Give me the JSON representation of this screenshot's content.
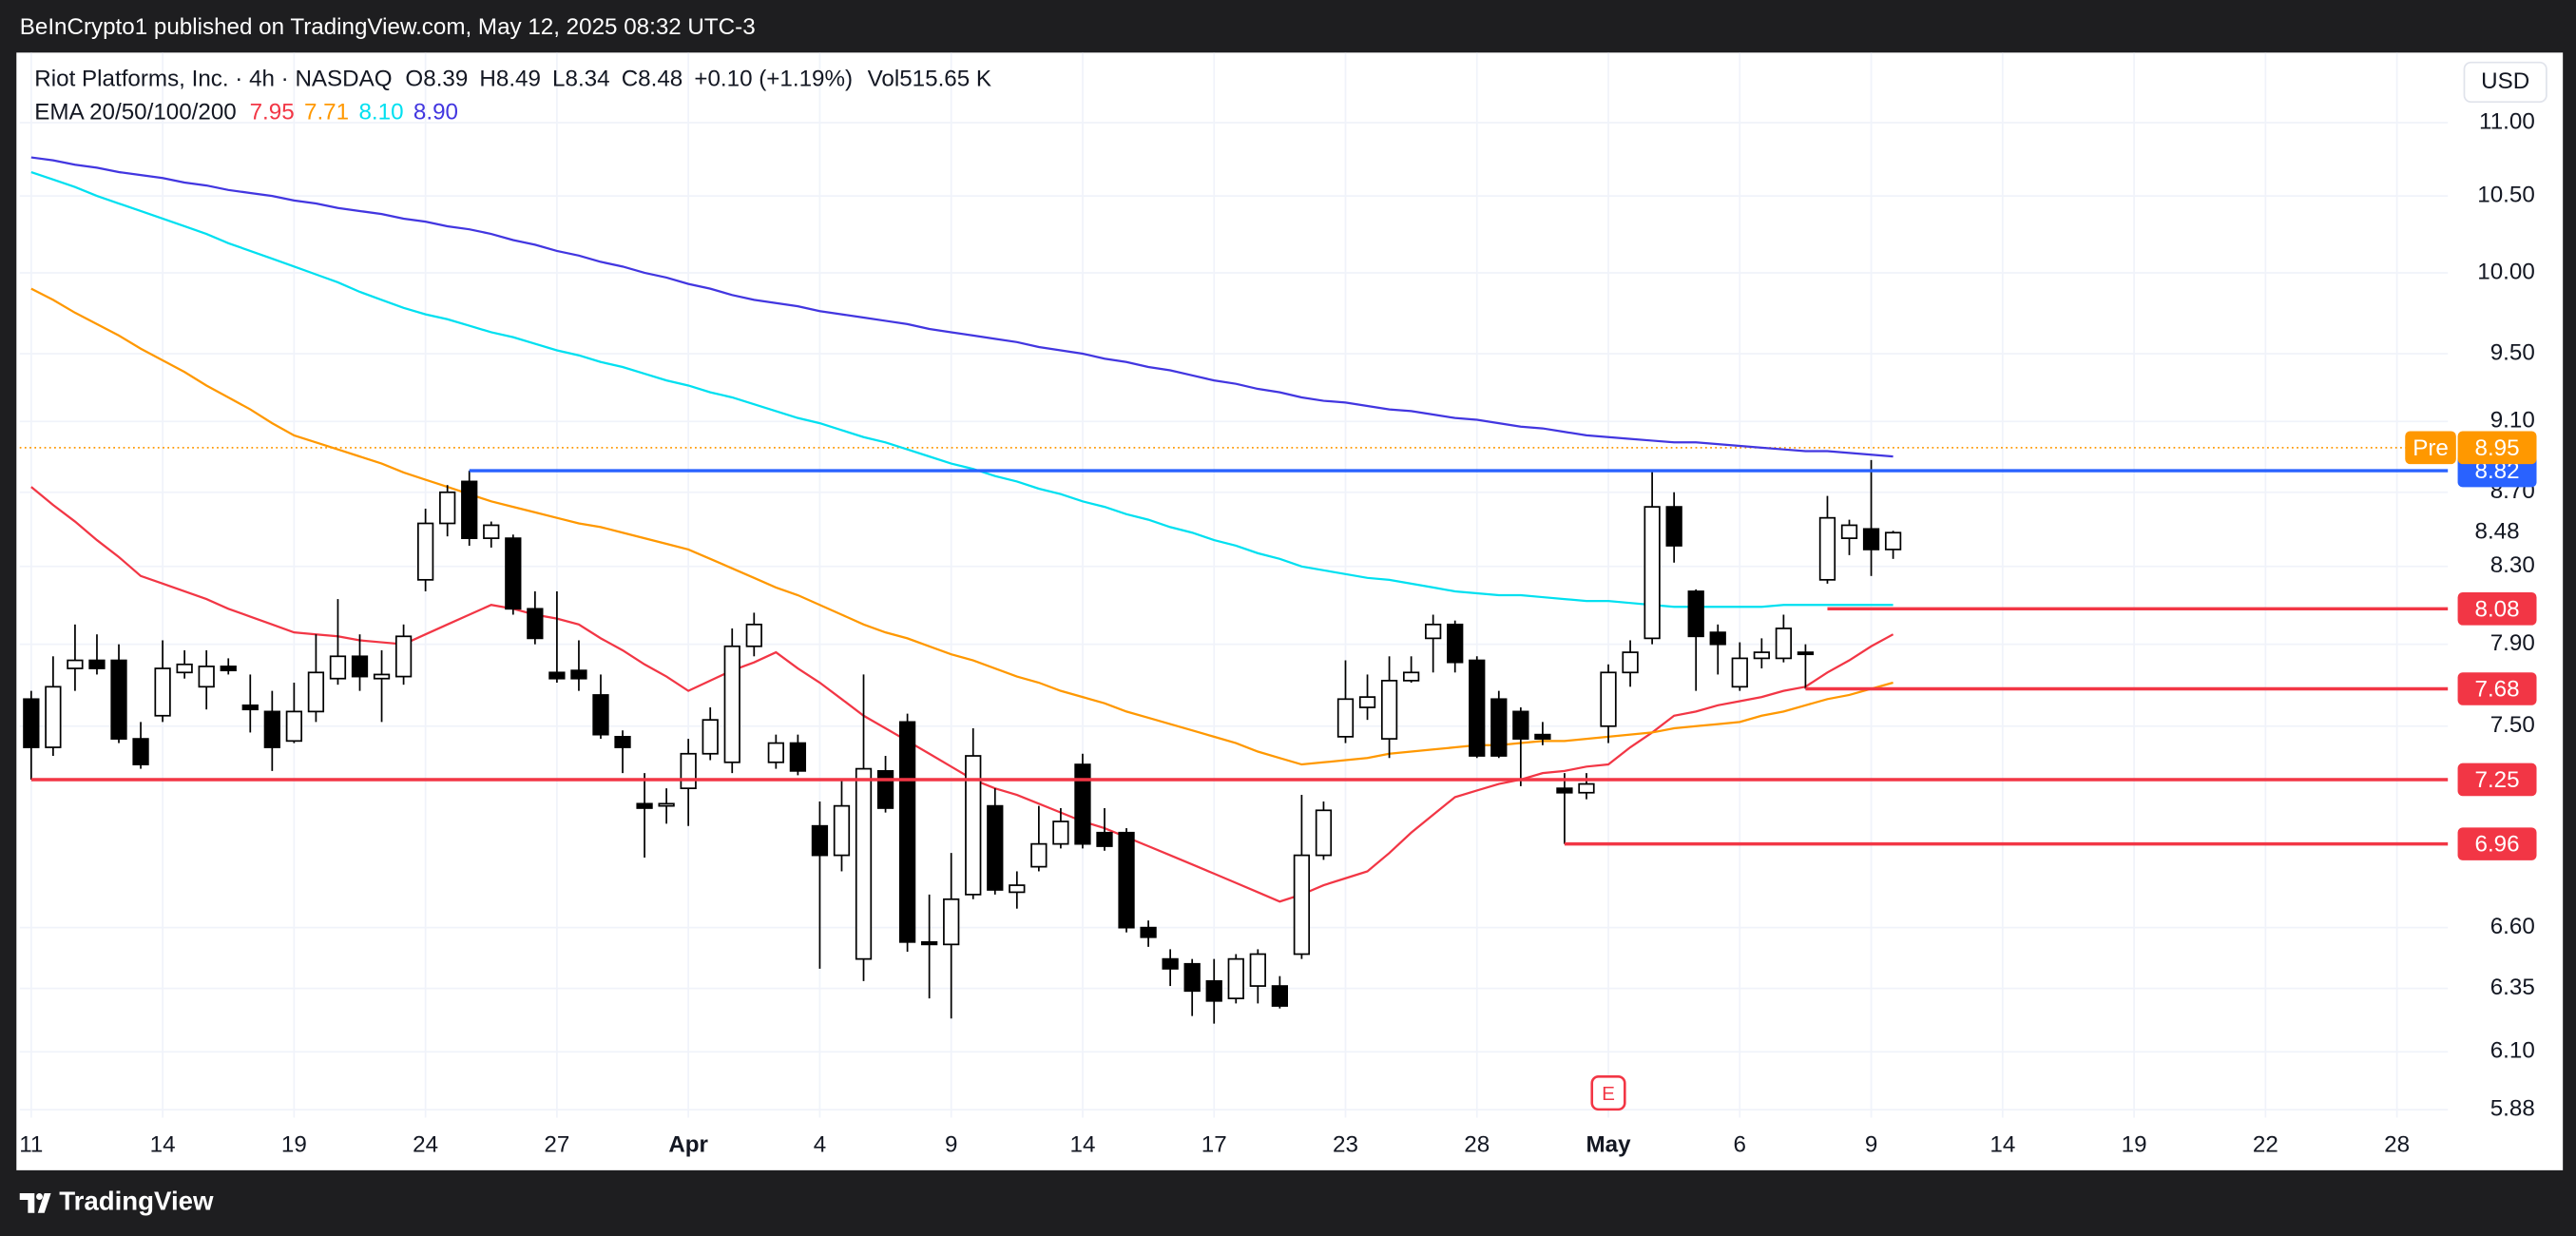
{
  "header": {
    "published": "BeInCrypto1 published on TradingView.com, May 12, 2025 08:32 UTC-3"
  },
  "footer": {
    "brand": "TradingView"
  },
  "chart_data": {
    "type": "candlestick",
    "title": "Riot Platforms, Inc. · 4h · NASDAQ",
    "ohlc_letters": [
      "O",
      "H",
      "L",
      "C"
    ],
    "change": "+0.10 (+1.19%)",
    "volume_label": "Vol",
    "volume": "515.65 K",
    "indicator": "EMA 20/50/100/200",
    "currency": "USD",
    "event_marker": "E",
    "categories": [
      "11",
      null,
      null,
      null,
      null,
      null,
      "14",
      null,
      null,
      null,
      null,
      null,
      "19",
      null,
      null,
      null,
      null,
      null,
      "24",
      null,
      null,
      null,
      null,
      null,
      "27",
      null,
      null,
      null,
      null,
      null,
      "Apr",
      null,
      null,
      null,
      null,
      null,
      "4",
      null,
      null,
      null,
      null,
      null,
      "9",
      null,
      null,
      null,
      null,
      null,
      "14",
      null,
      null,
      null,
      null,
      null,
      "17",
      null,
      null,
      null,
      null,
      null,
      "23",
      null,
      null,
      null,
      null,
      null,
      "28",
      null,
      null,
      null,
      null,
      null,
      "May",
      null,
      null,
      null,
      null,
      null,
      "6",
      null,
      null,
      null,
      null,
      null,
      "9",
      null,
      null,
      null,
      null,
      null,
      "14",
      null,
      null,
      null,
      null,
      null,
      "19",
      null,
      null,
      null,
      null,
      null,
      "22",
      null,
      null,
      null,
      null,
      null,
      "28",
      null
    ],
    "open": [
      7.63,
      7.4,
      7.78,
      7.82,
      7.82,
      7.44,
      7.55,
      7.76,
      7.69,
      7.79,
      7.6,
      7.57,
      7.43,
      7.57,
      7.73,
      7.84,
      7.73,
      7.74,
      8.23,
      8.53,
      8.76,
      8.45,
      8.45,
      8.08,
      7.76,
      7.77,
      7.65,
      7.45,
      7.14,
      7.13,
      7.21,
      7.37,
      7.33,
      7.89,
      7.33,
      7.42,
      7.04,
      6.91,
      6.47,
      7.29,
      7.52,
      6.54,
      6.53,
      6.74,
      7.13,
      6.75,
      6.86,
      6.96,
      7.32,
      7.01,
      7.01,
      6.6,
      6.47,
      6.45,
      6.38,
      6.31,
      6.36,
      6.36,
      6.49,
      6.91,
      7.45,
      7.59,
      7.44,
      7.72,
      7.93,
      8.0,
      7.82,
      7.63,
      7.57,
      7.46,
      7.21,
      7.19,
      7.5,
      7.76,
      7.93,
      8.62,
      8.17,
      7.96,
      7.69,
      7.83,
      7.83,
      7.86,
      8.23,
      8.45,
      8.5,
      8.39,
      null,
      null,
      null,
      null,
      null,
      null,
      null,
      null,
      null,
      null,
      null,
      null,
      null,
      null,
      null,
      null,
      null,
      null,
      null,
      null,
      null,
      null,
      null,
      null
    ],
    "high": [
      7.67,
      7.84,
      8.0,
      7.95,
      7.9,
      7.52,
      7.92,
      7.87,
      7.87,
      7.83,
      7.75,
      7.67,
      7.71,
      7.95,
      8.13,
      7.95,
      7.87,
      8.0,
      8.61,
      8.74,
      8.82,
      8.54,
      8.47,
      8.17,
      8.17,
      7.92,
      7.75,
      7.48,
      7.28,
      7.21,
      7.44,
      7.59,
      7.98,
      8.06,
      7.46,
      7.46,
      7.15,
      7.25,
      7.75,
      7.36,
      7.56,
      6.74,
      6.92,
      7.49,
      7.21,
      6.84,
      7.13,
      7.12,
      7.37,
      7.12,
      7.03,
      6.63,
      6.51,
      6.47,
      6.47,
      6.49,
      6.51,
      6.4,
      7.18,
      7.15,
      7.82,
      7.75,
      7.84,
      7.84,
      8.05,
      8.02,
      7.84,
      7.67,
      7.59,
      7.52,
      7.28,
      7.28,
      7.8,
      7.92,
      8.82,
      8.7,
      8.18,
      8.0,
      7.91,
      7.93,
      8.05,
      7.9,
      8.68,
      8.55,
      8.88,
      8.49,
      null,
      null,
      null,
      null,
      null,
      null,
      null,
      null,
      null,
      null,
      null,
      null,
      null,
      null,
      null,
      null,
      null,
      null,
      null,
      null,
      null,
      null,
      null,
      null
    ],
    "low": [
      7.25,
      7.36,
      7.67,
      7.75,
      7.42,
      7.3,
      7.52,
      7.73,
      7.58,
      7.75,
      7.47,
      7.29,
      7.42,
      7.52,
      7.7,
      7.67,
      7.52,
      7.7,
      8.17,
      8.46,
      8.41,
      8.4,
      8.05,
      7.9,
      7.71,
      7.67,
      7.44,
      7.28,
      6.9,
      7.05,
      7.04,
      7.34,
      7.28,
      7.84,
      7.3,
      7.27,
      6.43,
      6.84,
      6.38,
      7.1,
      6.5,
      6.31,
      6.23,
      6.72,
      6.74,
      6.68,
      6.84,
      6.94,
      6.94,
      6.93,
      6.58,
      6.52,
      6.36,
      6.24,
      6.21,
      6.29,
      6.29,
      6.27,
      6.47,
      6.89,
      7.42,
      7.53,
      7.35,
      7.71,
      7.76,
      7.76,
      7.35,
      7.35,
      7.22,
      7.41,
      6.96,
      7.16,
      7.42,
      7.69,
      7.9,
      8.32,
      7.67,
      7.75,
      7.67,
      7.78,
      7.81,
      7.68,
      8.21,
      8.36,
      8.25,
      8.34,
      null,
      null,
      null,
      null,
      null,
      null,
      null,
      null,
      null,
      null,
      null,
      null,
      null,
      null,
      null,
      null,
      null,
      null,
      null,
      null,
      null,
      null,
      null,
      null
    ],
    "close": [
      7.4,
      7.69,
      7.82,
      7.78,
      7.44,
      7.32,
      7.78,
      7.8,
      7.79,
      7.77,
      7.58,
      7.4,
      7.57,
      7.76,
      7.84,
      7.74,
      7.75,
      7.94,
      8.53,
      8.7,
      8.45,
      8.52,
      8.08,
      7.93,
      7.73,
      7.73,
      7.46,
      7.4,
      7.12,
      7.14,
      7.37,
      7.53,
      7.89,
      8.0,
      7.42,
      7.29,
      6.91,
      7.13,
      7.3,
      7.12,
      6.54,
      6.53,
      6.72,
      7.36,
      6.76,
      6.78,
      6.96,
      7.06,
      6.96,
      6.95,
      6.6,
      6.56,
      6.43,
      6.34,
      6.3,
      6.47,
      6.49,
      6.28,
      6.91,
      7.11,
      7.63,
      7.64,
      7.72,
      7.76,
      8.0,
      7.81,
      7.36,
      7.36,
      7.44,
      7.44,
      7.19,
      7.23,
      7.76,
      7.86,
      8.62,
      8.41,
      7.94,
      7.9,
      7.83,
      7.86,
      7.98,
      7.85,
      8.56,
      8.52,
      8.39,
      8.48,
      null,
      null,
      null,
      null,
      null,
      null,
      null,
      null,
      null,
      null,
      null,
      null,
      null,
      null,
      null,
      null,
      null,
      null,
      null,
      null,
      null,
      null,
      null,
      null
    ],
    "up_color": "#ffffff",
    "down_color": "#000000",
    "series": [
      {
        "color": "#f23645",
        "values": [
          8.73,
          8.63,
          8.54,
          8.44,
          8.35,
          8.25,
          8.21,
          8.17,
          8.13,
          8.08,
          8.04,
          8.0,
          7.96,
          7.95,
          7.94,
          7.92,
          7.91,
          7.9,
          7.95,
          8.0,
          8.05,
          8.1,
          8.08,
          8.05,
          8.03,
          8.0,
          7.93,
          7.87,
          7.8,
          7.74,
          7.67,
          7.72,
          7.77,
          7.81,
          7.86,
          7.78,
          7.71,
          7.63,
          7.55,
          7.49,
          7.43,
          7.37,
          7.31,
          7.25,
          7.21,
          7.18,
          7.14,
          7.1,
          7.06,
          7.03,
          6.99,
          6.95,
          6.91,
          6.87,
          6.83,
          6.79,
          6.75,
          6.71,
          6.74,
          6.78,
          6.81,
          6.84,
          6.92,
          7.01,
          7.09,
          7.17,
          7.2,
          7.23,
          7.25,
          7.28,
          7.29,
          7.31,
          7.32,
          7.4,
          7.47,
          7.55,
          7.57,
          7.6,
          7.62,
          7.64,
          7.67,
          7.69,
          7.76,
          7.82,
          7.89,
          7.95,
          null,
          null,
          null,
          null,
          null,
          null,
          null,
          null,
          null,
          null,
          null,
          null,
          null,
          null,
          null,
          null,
          null,
          null,
          null,
          null,
          null,
          null,
          null,
          null
        ]
      },
      {
        "color": "#ff9800",
        "values": [
          9.9,
          9.83,
          9.75,
          9.68,
          9.61,
          9.53,
          9.46,
          9.39,
          9.31,
          9.24,
          9.17,
          9.09,
          9.02,
          8.98,
          8.94,
          8.9,
          8.86,
          8.81,
          8.77,
          8.73,
          8.69,
          8.65,
          8.62,
          8.59,
          8.56,
          8.53,
          8.51,
          8.48,
          8.45,
          8.42,
          8.39,
          8.34,
          8.29,
          8.24,
          8.19,
          8.15,
          8.1,
          8.05,
          8.0,
          7.96,
          7.93,
          7.89,
          7.85,
          7.82,
          7.78,
          7.74,
          7.71,
          7.67,
          7.64,
          7.61,
          7.57,
          7.54,
          7.51,
          7.48,
          7.45,
          7.42,
          7.38,
          7.35,
          7.32,
          7.33,
          7.34,
          7.35,
          7.37,
          7.38,
          7.39,
          7.4,
          7.41,
          7.41,
          7.42,
          7.43,
          7.43,
          7.44,
          7.45,
          7.46,
          7.47,
          7.49,
          7.5,
          7.51,
          7.52,
          7.55,
          7.57,
          7.6,
          7.63,
          7.65,
          7.68,
          7.71,
          null,
          null,
          null,
          null,
          null,
          null,
          null,
          null,
          null,
          null,
          null,
          null,
          null,
          null,
          null,
          null,
          null,
          null,
          null,
          null,
          null,
          null,
          null,
          null
        ]
      },
      {
        "color": "#00e0f0",
        "values": [
          10.66,
          10.61,
          10.56,
          10.5,
          10.45,
          10.4,
          10.35,
          10.3,
          10.25,
          10.19,
          10.14,
          10.09,
          10.04,
          9.99,
          9.94,
          9.88,
          9.83,
          9.78,
          9.74,
          9.71,
          9.67,
          9.63,
          9.6,
          9.56,
          9.52,
          9.49,
          9.45,
          9.42,
          9.38,
          9.34,
          9.31,
          9.27,
          9.24,
          9.2,
          9.16,
          9.12,
          9.09,
          9.05,
          9.01,
          8.98,
          8.94,
          8.9,
          8.86,
          8.83,
          8.79,
          8.76,
          8.72,
          8.69,
          8.65,
          8.62,
          8.58,
          8.55,
          8.51,
          8.48,
          8.44,
          8.41,
          8.37,
          8.34,
          8.3,
          8.28,
          8.26,
          8.24,
          8.23,
          8.21,
          8.19,
          8.17,
          8.16,
          8.15,
          8.15,
          8.14,
          8.13,
          8.12,
          8.12,
          8.11,
          8.1,
          8.09,
          8.09,
          8.09,
          8.09,
          8.09,
          8.1,
          8.1,
          8.1,
          8.1,
          8.1,
          8.1,
          null,
          null,
          null,
          null,
          null,
          null,
          null,
          null,
          null,
          null,
          null,
          null,
          null,
          null,
          null,
          null,
          null,
          null,
          null,
          null,
          null,
          null,
          null,
          null
        ],
        "value_labels": [
          null,
          null,
          null,
          null,
          null,
          null,
          null,
          null,
          null,
          null,
          null,
          null,
          null,
          null,
          null,
          null,
          null,
          null,
          null,
          null,
          null,
          null,
          null,
          null,
          null,
          null,
          null,
          null,
          null,
          null,
          null,
          null,
          null,
          null,
          null,
          null,
          null,
          null,
          null,
          null,
          null,
          null,
          null,
          null,
          null,
          null,
          null,
          null,
          null,
          null,
          null,
          null,
          null,
          null,
          null,
          null,
          null,
          null,
          null,
          null,
          null,
          null,
          null,
          null,
          null,
          null,
          null,
          null,
          null,
          null,
          null,
          null,
          null,
          null,
          null,
          null,
          null,
          null,
          null,
          null,
          null,
          null,
          null,
          null,
          null,
          "8.10",
          null,
          null,
          null,
          null,
          null,
          null,
          null,
          null,
          null,
          null,
          null,
          null,
          null,
          null,
          null,
          null,
          null,
          null,
          null,
          null,
          null,
          null,
          null,
          null
        ]
      },
      {
        "color": "#4236e0",
        "values": [
          10.76,
          10.74,
          10.71,
          10.69,
          10.66,
          10.64,
          10.62,
          10.59,
          10.57,
          10.54,
          10.52,
          10.5,
          10.47,
          10.45,
          10.42,
          10.4,
          10.38,
          10.35,
          10.33,
          10.3,
          10.28,
          10.25,
          10.21,
          10.18,
          10.14,
          10.11,
          10.07,
          10.04,
          10.0,
          9.97,
          9.93,
          9.9,
          9.86,
          9.83,
          9.81,
          9.79,
          9.76,
          9.74,
          9.72,
          9.7,
          9.68,
          9.65,
          9.63,
          9.61,
          9.59,
          9.57,
          9.54,
          9.52,
          9.5,
          9.47,
          9.45,
          9.42,
          9.4,
          9.37,
          9.34,
          9.32,
          9.29,
          9.27,
          9.24,
          9.22,
          9.21,
          9.19,
          9.17,
          9.16,
          9.14,
          9.12,
          9.11,
          9.09,
          9.07,
          9.06,
          9.04,
          9.02,
          9.01,
          9.0,
          8.99,
          8.98,
          8.98,
          8.97,
          8.96,
          8.95,
          8.94,
          8.93,
          8.93,
          8.92,
          8.91,
          8.9,
          null,
          null,
          null,
          null,
          null,
          null,
          null,
          null,
          null,
          null,
          null,
          null,
          null,
          null,
          null,
          null,
          null,
          null,
          null,
          null,
          null,
          null,
          null,
          null
        ],
        "value_labels": [
          null,
          null,
          null,
          null,
          null,
          null,
          null,
          null,
          null,
          null,
          null,
          null,
          null,
          null,
          null,
          null,
          null,
          null,
          null,
          null,
          null,
          null,
          null,
          null,
          null,
          null,
          null,
          null,
          null,
          null,
          null,
          null,
          null,
          null,
          null,
          null,
          null,
          null,
          null,
          null,
          null,
          null,
          null,
          null,
          null,
          null,
          null,
          null,
          null,
          null,
          null,
          null,
          null,
          null,
          null,
          null,
          null,
          null,
          null,
          null,
          null,
          null,
          null,
          null,
          null,
          null,
          null,
          null,
          null,
          null,
          null,
          null,
          null,
          null,
          null,
          null,
          null,
          null,
          null,
          null,
          null,
          null,
          null,
          null,
          null,
          "8.90",
          null,
          null,
          null,
          null,
          null,
          null,
          null,
          null,
          null,
          null,
          null,
          null,
          null,
          null,
          null,
          null,
          null,
          null,
          null,
          null,
          null,
          null,
          null,
          null
        ]
      }
    ],
    "levels": [
      {
        "value": 8.82,
        "color": "#2962ff"
      },
      {
        "value": 8.08,
        "color": "#f23645"
      },
      {
        "value": 7.68,
        "color": "#f23645"
      },
      {
        "value": 7.25,
        "color": "#f23645"
      },
      {
        "value": 6.96,
        "color": "#f23645"
      }
    ],
    "premarket": {
      "label": "Pre",
      "value": 8.95,
      "color": "#ff9800"
    },
    "log_scale": true,
    "grid": true,
    "ylim": [
      5.67,
      11.5
    ],
    "yticks": [
      {
        "value": 11,
        "label": "11.00"
      },
      {
        "value": 10.5,
        "label": "10.50"
      },
      {
        "value": 10,
        "label": "10.00"
      },
      {
        "value": 9.5,
        "label": "9.50"
      },
      {
        "value": 9.1,
        "label": "9.10"
      },
      {
        "value": 8.7,
        "label": "8.70"
      },
      {
        "value": 8.3,
        "label": "8.30"
      },
      {
        "value": 7.9,
        "label": "7.90"
      },
      {
        "value": 7.5,
        "label": "7.50"
      },
      {
        "value": 6.6,
        "label": "6.60"
      },
      {
        "value": 6.35,
        "label": "6.35"
      },
      {
        "value": 6.1,
        "label": "6.10"
      },
      {
        "value": 5.88,
        "label": "5.88"
      }
    ]
  }
}
